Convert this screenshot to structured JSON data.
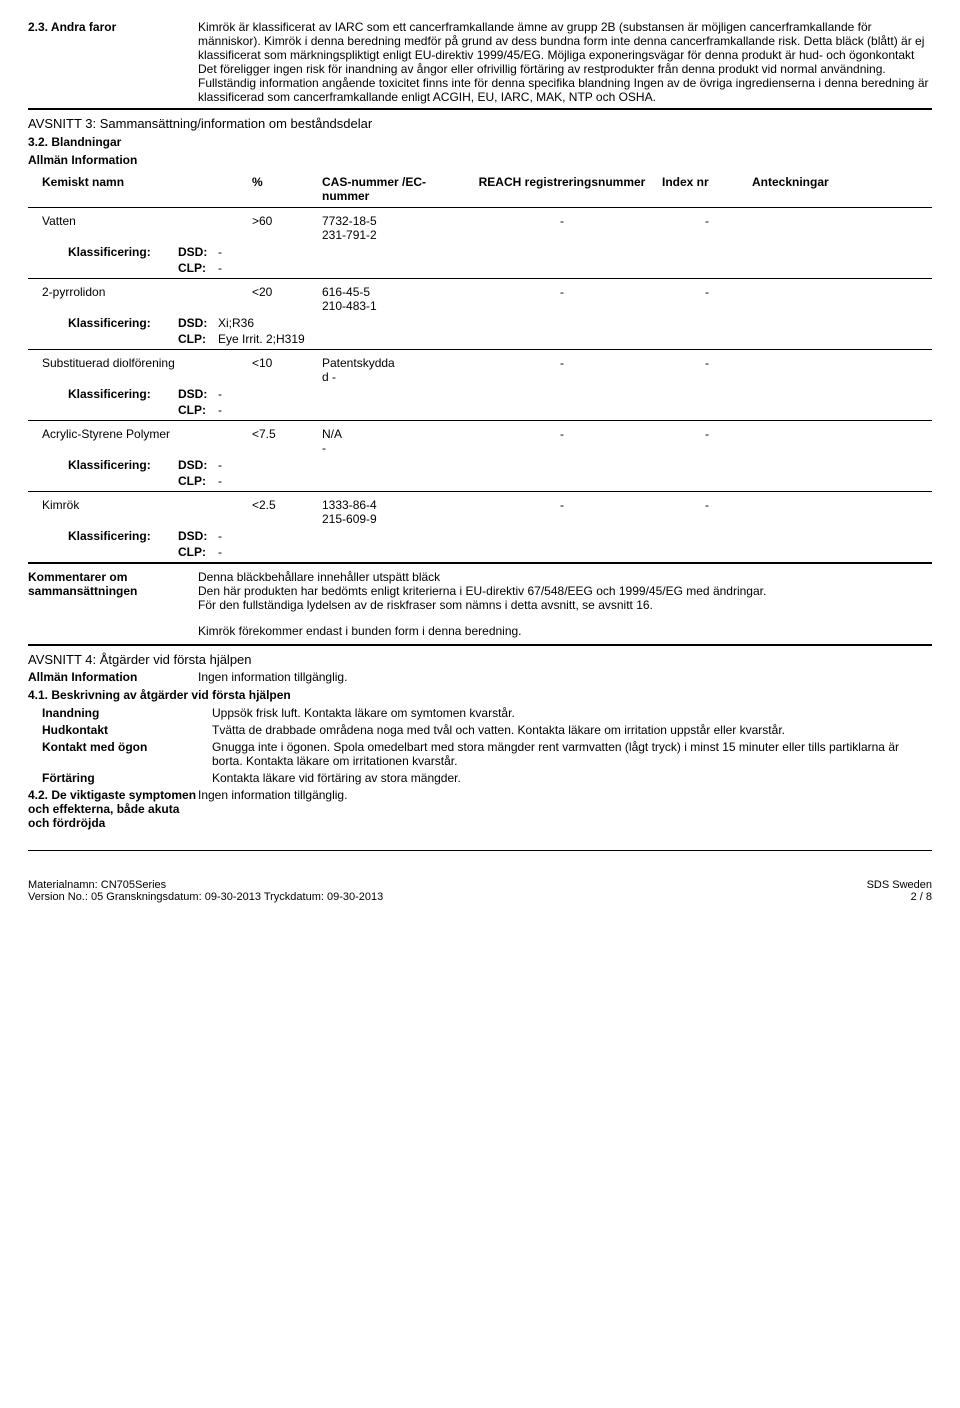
{
  "hazards": {
    "label": "2.3. Andra faror",
    "text": "Kimrök är klassificerat av IARC som ett cancerframkallande ämne av grupp 2B (substansen är möjligen cancerframkallande för människor). Kimrök i denna beredning medför på grund av dess bundna form inte denna cancerframkallande risk. Detta bläck (blått) är ej klassificerat som märkningspliktigt enligt EU-direktiv 1999/45/EG. Möjliga exponeringsvägar för denna produkt är hud- och ögonkontakt Det föreligger ingen risk för inandning av ångor eller ofrivillig förtäring av restprodukter från denna produkt vid normal användning. Fullständig information angående toxicitet finns inte för denna specifika blandning Ingen av de övriga ingredienserna i denna beredning är klassificerad som cancerframkallande enligt ACGIH, EU, IARC, MAK, NTP och OSHA."
  },
  "section3": {
    "title": "AVSNITT 3: Sammansättning/information om beståndsdelar",
    "sub": "3.2. Blandningar",
    "general": "Allmän Information",
    "headers": {
      "name": "Kemiskt namn",
      "pct": "%",
      "cas": "CAS-nummer /EC-nummer",
      "reach": "REACH registreringsnummer",
      "idx": "Index nr",
      "notes": "Anteckningar"
    },
    "class_label": "Klassificering:",
    "dsd": "DSD:",
    "clp": "CLP:",
    "ingredients": [
      {
        "name": "Vatten",
        "pct": ">60",
        "cas1": "7732-18-5",
        "cas2": "231-791-2",
        "reach": "-",
        "idx": "-",
        "dsd": "-",
        "clp": "-"
      },
      {
        "name": "2-pyrrolidon",
        "pct": "<20",
        "cas1": "616-45-5",
        "cas2": "210-483-1",
        "reach": "-",
        "idx": "-",
        "dsd": "Xi;R36",
        "clp": "Eye Irrit. 2;H319"
      },
      {
        "name": "Substituerad diolförening",
        "pct": "<10",
        "cas1": "Patentskydda",
        "cas2": "d        -",
        "reach": "-",
        "idx": "-",
        "dsd": "-",
        "clp": "-"
      },
      {
        "name": "Acrylic-Styrene Polymer",
        "pct": "<7.5",
        "cas1": "N/A",
        "cas2": "-",
        "reach": "-",
        "idx": "-",
        "dsd": "-",
        "clp": "-"
      },
      {
        "name": "Kimrök",
        "pct": "<2.5",
        "cas1": "1333-86-4",
        "cas2": "215-609-9",
        "reach": "-",
        "idx": "-",
        "dsd": "-",
        "clp": "-"
      }
    ]
  },
  "comments": {
    "label": "Kommentarer om sammansättningen",
    "line1": "Denna bläckbehållare innehåller utspätt bläck",
    "line2": "Den här produkten har bedömts enligt kriterierna i EU-direktiv 67/548/EEG och 1999/45/EG med ändringar.",
    "line3": "För den fullständiga lydelsen av de riskfraser som nämns i detta avsnitt, se avsnitt 16.",
    "line4": "Kimrök förekommer endast i bunden form i denna beredning."
  },
  "section4": {
    "title": "AVSNITT 4: Åtgärder vid första hjälpen",
    "general_label": "Allmän Information",
    "general_value": "Ingen information tillgänglig.",
    "sub": "4.1. Beskrivning av åtgärder vid första hjälpen",
    "rows": [
      {
        "label": "Inandning",
        "value": "Uppsök frisk luft. Kontakta läkare om symtomen kvarstår."
      },
      {
        "label": "Hudkontakt",
        "value": "Tvätta de drabbade områdena noga med tvål och vatten. Kontakta läkare om irritation uppstår eller kvarstår."
      },
      {
        "label": "Kontakt med ögon",
        "value": "Gnugga inte i ögonen. Spola omedelbart med stora mängder rent varmvatten (lågt tryck) i minst 15 minuter eller tills partiklarna är borta. Kontakta läkare om irritationen kvarstår."
      },
      {
        "label": "Förtäring",
        "value": "Kontakta läkare vid förtäring av stora mängder."
      }
    ],
    "sub2_label": "4.2. De viktigaste symptomen och effekterna, både akuta och fördröjda",
    "sub2_value": "Ingen information tillgänglig."
  },
  "footer": {
    "mat_label": "Materialnamn: CN705Series",
    "sds": "SDS Sweden",
    "ver": "Version No.: 05    Granskningsdatum: 09-30-2013    Tryckdatum: 09-30-2013",
    "page": "2 / 8"
  }
}
